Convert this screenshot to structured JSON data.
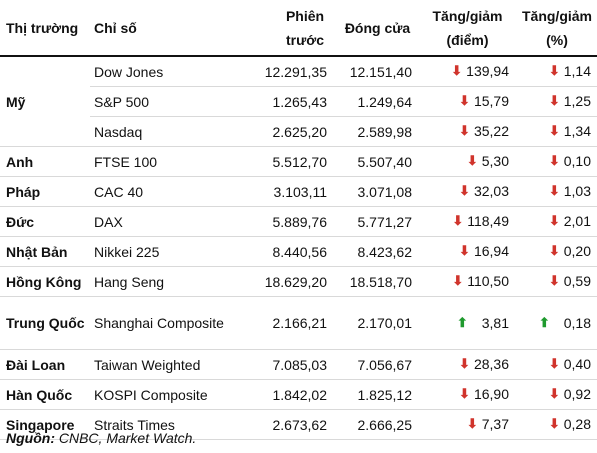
{
  "headers": {
    "market": "Thị trường",
    "index": "Chỉ số",
    "previous": "Phiên trước",
    "close": "Đóng cửa",
    "change_pts": "Tăng/giảm (điểm)",
    "change_pct": "Tăng/giảm (%)"
  },
  "rows": [
    {
      "market": "Mỹ",
      "index": "Dow Jones",
      "previous": "12.291,35",
      "close": "12.151,40",
      "direction": "down",
      "change_pts": "139,94",
      "change_pct": "1,14"
    },
    {
      "market": "",
      "index": "S&P 500",
      "previous": "1.265,43",
      "close": "1.249,64",
      "direction": "down",
      "change_pts": "15,79",
      "change_pct": "1,25"
    },
    {
      "market": "",
      "index": "Nasdaq",
      "previous": "2.625,20",
      "close": "2.589,98",
      "direction": "down",
      "change_pts": "35,22",
      "change_pct": "1,34"
    },
    {
      "market": "Anh",
      "index": "FTSE 100",
      "previous": "5.512,70",
      "close": "5.507,40",
      "direction": "down",
      "change_pts": "5,30",
      "change_pct": "0,10"
    },
    {
      "market": "Pháp",
      "index": "CAC 40",
      "previous": "3.103,11",
      "close": "3.071,08",
      "direction": "down",
      "change_pts": "32,03",
      "change_pct": "1,03"
    },
    {
      "market": "Đức",
      "index": "DAX",
      "previous": "5.889,76",
      "close": "5.771,27",
      "direction": "down",
      "change_pts": "118,49",
      "change_pct": "2,01"
    },
    {
      "market": "Nhật Bản",
      "index": "Nikkei 225",
      "previous": "8.440,56",
      "close": "8.423,62",
      "direction": "down",
      "change_pts": "16,94",
      "change_pct": "0,20"
    },
    {
      "market": "Hồng Kông",
      "index": "Hang Seng",
      "previous": "18.629,20",
      "close": "18.518,70",
      "direction": "down",
      "change_pts": "110,50",
      "change_pct": "0,59"
    },
    {
      "market": "Trung Quốc",
      "index": "Shanghai Composite",
      "previous": "2.166,21",
      "close": "2.170,01",
      "direction": "up",
      "change_pts": "3,81",
      "change_pct": "0,18"
    },
    {
      "market": "Đài Loan",
      "index": "Taiwan Weighted",
      "previous": "7.085,03",
      "close": "7.056,67",
      "direction": "down",
      "change_pts": "28,36",
      "change_pct": "0,40"
    },
    {
      "market": "Hàn Quốc",
      "index": "KOSPI Composite",
      "previous": "1.842,02",
      "close": "1.825,12",
      "direction": "down",
      "change_pts": "16,90",
      "change_pct": "0,92"
    },
    {
      "market": "Singapore",
      "index": "Straits Times",
      "previous": "2.673,62",
      "close": "2.666,25",
      "direction": "down",
      "change_pts": "7,37",
      "change_pct": "0,28"
    }
  ],
  "source": {
    "label": "Nguồn:",
    "text": "CNBC, Market Watch."
  },
  "colors": {
    "down": "#d0342c",
    "up": "#1f9a2e"
  }
}
